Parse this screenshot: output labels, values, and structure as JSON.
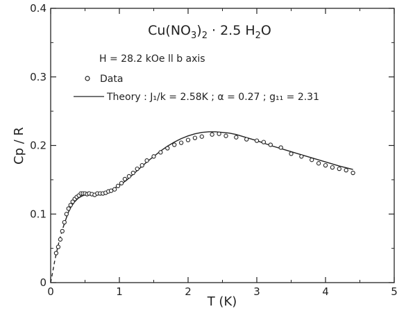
{
  "chart_data": {
    "type": "scatter",
    "title": "Cu(NO3)2 · 2.5 H2O",
    "title_parts": {
      "base": "Cu(NO",
      "sub1": "3",
      "close": ")",
      "sub2": "2",
      "rest": " · 2.5 H",
      "sub3": "2",
      "end": "O"
    },
    "subtitle": "H = 28.2 kOe ll b  axis",
    "xlabel": "T (K)",
    "ylabel": "Cp / R",
    "xlim": [
      0,
      5
    ],
    "ylim": [
      0,
      0.4
    ],
    "xticks": [
      0,
      1,
      2,
      3,
      4,
      5
    ],
    "xtick_labels": [
      "0",
      "1",
      "2",
      "3",
      "4",
      "5"
    ],
    "yticks": [
      0,
      0.1,
      0.2,
      0.3,
      0.4
    ],
    "ytick_labels": [
      "0",
      "0.1",
      "0.2",
      "0.3",
      "0.4"
    ],
    "grid": false,
    "legend": {
      "placement": "upper-left",
      "data_label": "Data",
      "theory_label": "Theory : J₁/k = 2.58K ; α = 0.27 ; g₁₁ = 2.31"
    },
    "series": [
      {
        "name": "Data",
        "kind": "scatter",
        "marker": "open-circle",
        "x": [
          0.08,
          0.11,
          0.14,
          0.17,
          0.2,
          0.23,
          0.26,
          0.29,
          0.32,
          0.35,
          0.38,
          0.41,
          0.44,
          0.47,
          0.5,
          0.53,
          0.56,
          0.6,
          0.64,
          0.68,
          0.72,
          0.76,
          0.8,
          0.84,
          0.88,
          0.93,
          0.98,
          1.03,
          1.08,
          1.14,
          1.2,
          1.26,
          1.33,
          1.4,
          1.5,
          1.6,
          1.7,
          1.8,
          1.9,
          2.0,
          2.1,
          2.2,
          2.35,
          2.45,
          2.55,
          2.7,
          2.85,
          3.0,
          3.1,
          3.2,
          3.35,
          3.5,
          3.65,
          3.8,
          3.9,
          4.0,
          4.1,
          4.2,
          4.3,
          4.4
        ],
        "y": [
          0.043,
          0.052,
          0.063,
          0.075,
          0.088,
          0.1,
          0.108,
          0.113,
          0.118,
          0.122,
          0.125,
          0.127,
          0.13,
          0.13,
          0.13,
          0.129,
          0.13,
          0.129,
          0.128,
          0.13,
          0.13,
          0.13,
          0.131,
          0.133,
          0.134,
          0.136,
          0.141,
          0.145,
          0.151,
          0.155,
          0.16,
          0.166,
          0.171,
          0.178,
          0.184,
          0.19,
          0.196,
          0.201,
          0.204,
          0.208,
          0.211,
          0.213,
          0.216,
          0.217,
          0.214,
          0.212,
          0.209,
          0.207,
          0.205,
          0.201,
          0.197,
          0.188,
          0.184,
          0.179,
          0.174,
          0.171,
          0.168,
          0.166,
          0.164,
          0.16
        ]
      },
      {
        "name": "Theory",
        "kind": "line",
        "x": [
          0.18,
          0.22,
          0.26,
          0.3,
          0.35,
          0.4,
          0.45,
          0.5,
          0.55,
          0.6,
          0.65,
          0.7,
          0.75,
          0.8,
          0.85,
          0.9,
          1.0,
          1.1,
          1.2,
          1.3,
          1.4,
          1.5,
          1.6,
          1.7,
          1.8,
          1.9,
          2.0,
          2.1,
          2.2,
          2.3,
          2.4,
          2.5,
          2.6,
          2.7,
          2.8,
          3.0,
          3.2,
          3.4,
          3.6,
          3.8,
          4.0,
          4.2,
          4.4
        ],
        "y": [
          0.08,
          0.092,
          0.103,
          0.111,
          0.118,
          0.123,
          0.126,
          0.128,
          0.129,
          0.129,
          0.129,
          0.13,
          0.131,
          0.132,
          0.134,
          0.136,
          0.142,
          0.149,
          0.158,
          0.167,
          0.176,
          0.184,
          0.192,
          0.199,
          0.205,
          0.21,
          0.214,
          0.217,
          0.219,
          0.22,
          0.22,
          0.219,
          0.218,
          0.216,
          0.213,
          0.207,
          0.2,
          0.194,
          0.188,
          0.182,
          0.176,
          0.17,
          0.165
        ]
      },
      {
        "name": "Theory (extrapolated)",
        "kind": "dashed-line",
        "x": [
          0.0,
          0.03,
          0.06,
          0.09,
          0.12,
          0.15,
          0.18
        ],
        "y": [
          0.0,
          0.016,
          0.032,
          0.046,
          0.059,
          0.07,
          0.08
        ]
      }
    ]
  }
}
